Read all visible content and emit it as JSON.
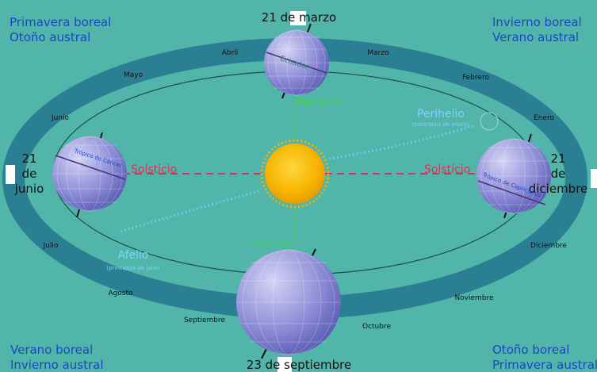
{
  "corners": {
    "top_left": [
      "Primavera boreal",
      "Otoño austral"
    ],
    "top_right": [
      "Invierno boreal",
      "Verano austral"
    ],
    "bottom_left": [
      "Verano boreal",
      "Invierno austral"
    ],
    "bottom_right": [
      "Otoño boreal",
      "Primavera austral"
    ]
  },
  "dates": {
    "march": "21 de marzo",
    "september": "23 de septiembre",
    "june": [
      "21",
      "de",
      "junio"
    ],
    "december": [
      "21",
      "de",
      "diciembre"
    ]
  },
  "months": {
    "abril": "Abril",
    "marzo": "Marzo",
    "mayo": "Mayo",
    "febrero": "Febrero",
    "junio": "Junio",
    "enero": "Enero",
    "julio": "Julio",
    "diciembre": "Diciembre",
    "agosto": "Agosto",
    "noviembre": "Noviembre",
    "septiembre": "Septiembre",
    "octubre": "Octubre"
  },
  "labels": {
    "equinox": "Equinoccio",
    "solstice": "Solsticio",
    "equator": "Ecuador",
    "tropic_cancer": "Trópico de Cáncer",
    "tropic_capricorn": "Trópico de Capricornio",
    "perihelion": "Perihelio",
    "perihelion_sub": "(principios de enero)",
    "aphelion": "Afelio",
    "aphelion_sub": "(principios de julio)"
  },
  "colors": {
    "background": "#52b5aa",
    "orbit_band": "#2a7f93",
    "corner_text": "#1a45c8",
    "solstice_red": "#d8325a",
    "equinox_green": "#39d33c",
    "perihelion_blue": "#7fd2ff",
    "sun": "#f6b400"
  }
}
